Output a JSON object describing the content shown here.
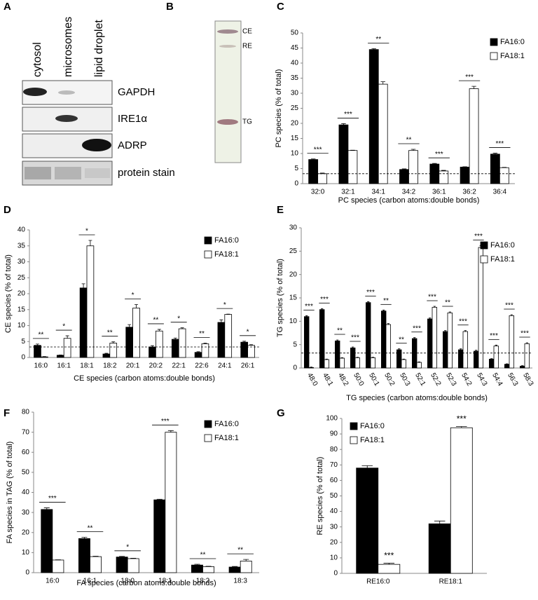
{
  "blot": {
    "panel": "A",
    "columns": [
      "cytosol",
      "microsomes",
      "lipid droplet"
    ],
    "rows": [
      "GAPDH",
      "IRE1α",
      "ADRP",
      "protein stain"
    ]
  },
  "tlc": {
    "panel": "B",
    "labels": [
      "CE",
      "RE",
      "TG"
    ]
  },
  "chart_data": [
    {
      "panel": "C",
      "type": "bar",
      "ylabel": "PC species (% of total)",
      "xlabel": "PC species (carbon atoms:double bonds)",
      "categories": [
        "32:0",
        "32:1",
        "34:1",
        "34:2",
        "36:1",
        "36:2",
        "36:4"
      ],
      "series": [
        {
          "name": "FA16:0",
          "color": "#000000",
          "values": [
            8,
            19.5,
            44.5,
            4.7,
            6.5,
            5.5,
            9.8
          ],
          "errors": [
            0.2,
            0.4,
            0.3,
            0.2,
            0.2,
            0.1,
            0.3
          ]
        },
        {
          "name": "FA18:1",
          "color": "#ffffff",
          "values": [
            3.3,
            11,
            33,
            11,
            4.2,
            31.5,
            5.3
          ],
          "errors": [
            0.2,
            0.1,
            0.8,
            0.4,
            0.2,
            0.8,
            0.1
          ]
        }
      ],
      "significance": [
        "***",
        "***",
        "**",
        "**",
        "***",
        "***",
        "***"
      ],
      "significance_bracket": true,
      "reference_line": 3.3,
      "ylim": [
        0,
        50
      ],
      "yticks": [
        0,
        5,
        10,
        15,
        20,
        25,
        30,
        35,
        40,
        45,
        50
      ],
      "legend": "upper right"
    },
    {
      "panel": "D",
      "type": "bar",
      "ylabel": "CE species (% of total)",
      "xlabel": "CE species (carbon atoms:double bonds)",
      "categories": [
        "16:0",
        "16:1",
        "18:1",
        "18:2",
        "20:1",
        "20:2",
        "22:1",
        "22:6",
        "24:1",
        "26:1"
      ],
      "series": [
        {
          "name": "FA16:0",
          "color": "#000000",
          "values": [
            3.8,
            0.7,
            21.8,
            1.1,
            9.5,
            3.3,
            5.7,
            1.6,
            11,
            4.8
          ],
          "errors": [
            0.4,
            0.1,
            1.3,
            0.2,
            0.8,
            0.4,
            0.4,
            0.2,
            0.8,
            0.3
          ]
        },
        {
          "name": "FA18:1",
          "color": "#ffffff",
          "values": [
            0.2,
            6,
            35,
            4.5,
            15.5,
            8.3,
            9,
            4.3,
            13.5,
            3.8
          ],
          "errors": [
            0.1,
            0.8,
            1.7,
            0.4,
            1.1,
            0.5,
            0.3,
            0.2,
            0.1,
            0.2
          ]
        }
      ],
      "significance": [
        "**",
        "*",
        "*",
        "**",
        "*",
        "**",
        "*",
        "**",
        "*",
        "*"
      ],
      "significance_bracket": true,
      "reference_line": 3.3,
      "ylim": [
        0,
        40
      ],
      "yticks": [
        0,
        5,
        10,
        15,
        20,
        25,
        30,
        35,
        40
      ],
      "legend": "upper right"
    },
    {
      "panel": "E",
      "type": "bar",
      "ylabel": "TG species (% of total)",
      "xlabel": "TG species (carbon atoms:double bonds)",
      "categories": [
        "48:0",
        "48:1",
        "48:2",
        "50:0",
        "50:1",
        "50:2",
        "50:3",
        "52:1",
        "52:2",
        "52:3",
        "54:2",
        "54:3",
        "54:4",
        "56:3",
        "58:3"
      ],
      "series": [
        {
          "name": "FA16:0",
          "color": "#000000",
          "values": [
            11,
            12.5,
            5.8,
            4.3,
            14,
            12.2,
            3.9,
            6.3,
            10.5,
            7.8,
            3.9,
            3.6,
            1.9,
            0.8,
            0.4
          ],
          "errors": [
            0.2,
            0.2,
            0.2,
            0.2,
            0.2,
            0.2,
            0.2,
            0.2,
            0.2,
            0.2,
            0.2,
            0.2,
            0.1,
            0.1,
            0.1
          ]
        },
        {
          "name": "FA18:1",
          "color": "#ffffff",
          "values": [
            0.1,
            1.8,
            2.1,
            2.2,
            2.2,
            9.3,
            1.8,
            1.2,
            13,
            11.8,
            7.8,
            25.8,
            4.7,
            11.2,
            5.2
          ],
          "errors": [
            0.1,
            0.1,
            0.1,
            0.1,
            0.1,
            0.2,
            0.1,
            0.1,
            0.2,
            0.2,
            0.2,
            0.4,
            0.2,
            0.2,
            0.2
          ]
        }
      ],
      "significance": [
        "***",
        "***",
        "**",
        "***",
        "***",
        "**",
        "**",
        "***",
        "***",
        "**",
        "***",
        "***",
        "***",
        "***",
        "***"
      ],
      "significance_bracket": true,
      "reference_line": 3.2,
      "ylim": [
        0,
        30
      ],
      "yticks": [
        0,
        5,
        10,
        15,
        20,
        25,
        30
      ],
      "legend": "upper right"
    },
    {
      "panel": "F",
      "type": "bar",
      "ylabel": "FA species in TAG (% of total)",
      "xlabel": "FA species (carbon atoms:double bonds)",
      "categories": [
        "16:0",
        "16:1",
        "18:0",
        "18:1",
        "18:2",
        "18:3"
      ],
      "series": [
        {
          "name": "FA16:0",
          "color": "#000000",
          "values": [
            31.5,
            17,
            7.8,
            36.3,
            3.8,
            2.8
          ],
          "errors": [
            0.8,
            0.6,
            0.3,
            0.3,
            0.4,
            0.3
          ]
        },
        {
          "name": "FA18:1",
          "color": "#ffffff",
          "values": [
            6.3,
            8,
            7,
            70,
            3,
            5.8
          ],
          "errors": [
            0.1,
            0.2,
            0.2,
            0.8,
            0.2,
            0.8
          ]
        }
      ],
      "significance": [
        "***",
        "**",
        "*",
        "***",
        "**",
        "**"
      ],
      "significance_bracket": true,
      "ylim": [
        0,
        80
      ],
      "yticks": [
        0,
        10,
        20,
        30,
        40,
        50,
        60,
        70,
        80
      ],
      "legend": "upper right"
    },
    {
      "panel": "G",
      "type": "bar",
      "ylabel": "RE species (% of total)",
      "categories": [
        "RE16:0",
        "RE18:1"
      ],
      "series": [
        {
          "name": "FA16:0",
          "color": "#000000",
          "values": [
            68,
            32
          ],
          "errors": [
            1.5,
            1.8
          ]
        },
        {
          "name": "FA18:1",
          "color": "#ffffff",
          "values": [
            5.8,
            94
          ],
          "errors": [
            0.8,
            0.8
          ]
        }
      ],
      "significance": [
        "***",
        "***"
      ],
      "significance_bracket": false,
      "ylim": [
        0,
        100
      ],
      "yticks": [
        0,
        10,
        20,
        30,
        40,
        50,
        60,
        70,
        80,
        90,
        100
      ],
      "legend": "upper left"
    }
  ]
}
